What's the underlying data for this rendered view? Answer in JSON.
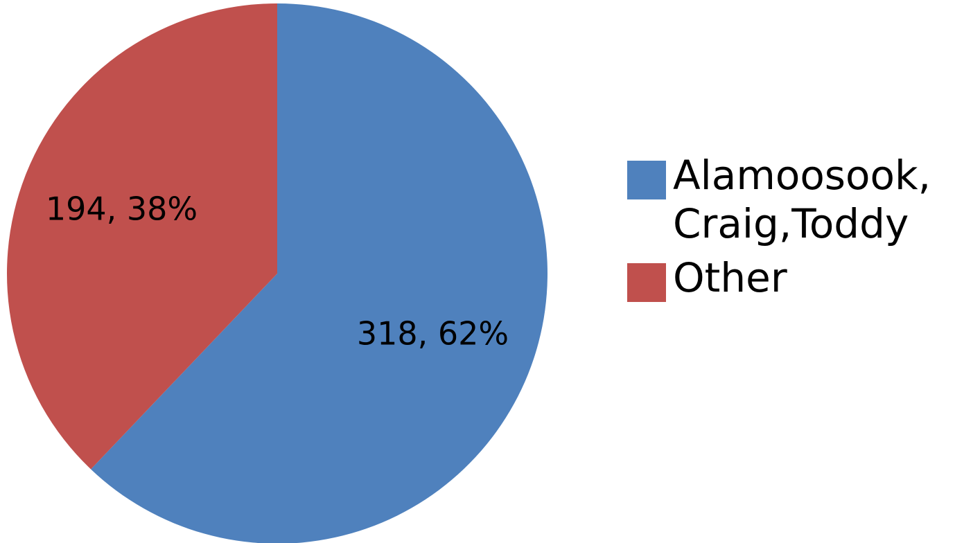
{
  "chart_data": {
    "type": "pie",
    "slices": [
      {
        "label": "Alamoosook, Craig,Toddy",
        "value": 318,
        "percent": 62,
        "data_label": "318, 62%",
        "color": "#4F81BD"
      },
      {
        "label": "Other",
        "value": 194,
        "percent": 38,
        "data_label": "194, 38%",
        "color": "#C0504D"
      }
    ],
    "start_angle_deg": 0,
    "direction": "clockwise",
    "legend_position": "right"
  },
  "legend": {
    "items": [
      {
        "text": "Alamoosook,\nCraig,Toddy",
        "color": "#4F81BD"
      },
      {
        "text": "Other",
        "color": "#C0504D"
      }
    ]
  }
}
